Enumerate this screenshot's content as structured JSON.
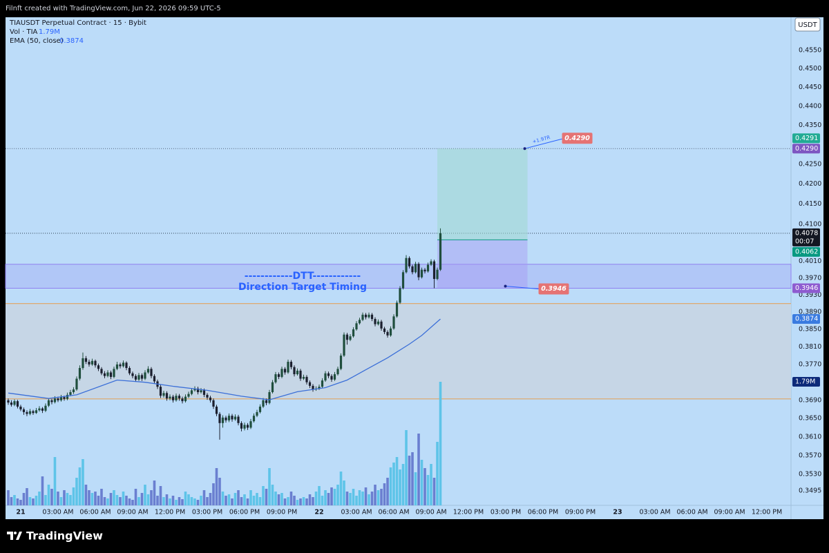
{
  "header": "Filnft created with TradingView.com, Jun 22, 2026 09:59 UTC-5",
  "footer": "TradingView",
  "chart_data": {
    "type": "candlestick",
    "title": "TIAUSDT Perpetual Contract · 15 · Bybit",
    "currency": "USDT",
    "volume_legend": {
      "label": "Vol · TIA",
      "value": 1.79,
      "value_label": "1.79M"
    },
    "ema_legend": {
      "label": "EMA (50, close)",
      "value": 0.3874
    },
    "log_scale": true,
    "grid": false,
    "up_color": "#1f4e3d",
    "down_color": "#1b1f2e",
    "volume_up_color": "#5ec4e8",
    "volume_down_color": "#6a7fd0",
    "ema_color": "#3b6fd8",
    "xlim": [
      -1.22,
      61.94
    ],
    "xticks": [
      {
        "value": 0,
        "label": "21"
      },
      {
        "value": 3,
        "label": "03:00 AM"
      },
      {
        "value": 6,
        "label": "06:00 AM"
      },
      {
        "value": 9,
        "label": "09:00 AM"
      },
      {
        "value": 12,
        "label": "12:00 PM"
      },
      {
        "value": 15,
        "label": "03:00 PM"
      },
      {
        "value": 18,
        "label": "06:00 PM"
      },
      {
        "value": 21,
        "label": "09:00 PM"
      },
      {
        "value": 24,
        "label": "22"
      },
      {
        "value": 27,
        "label": "03:00 AM"
      },
      {
        "value": 30,
        "label": "06:00 AM"
      },
      {
        "value": 33,
        "label": "09:00 AM"
      },
      {
        "value": 36,
        "label": "12:00 PM"
      },
      {
        "value": 39,
        "label": "03:00 PM"
      },
      {
        "value": 42,
        "label": "06:00 PM"
      },
      {
        "value": 45,
        "label": "09:00 PM"
      },
      {
        "value": 48,
        "label": "23"
      },
      {
        "value": 51,
        "label": "03:00 AM"
      },
      {
        "value": 54,
        "label": "06:00 AM"
      },
      {
        "value": 57,
        "label": "09:00 AM"
      },
      {
        "value": 60,
        "label": "12:00 PM"
      }
    ],
    "ylim": [
      0.3465,
      0.4641
    ],
    "yticks": [
      {
        "value": 0.455,
        "label": "0.4550"
      },
      {
        "value": 0.45,
        "label": "0.4500"
      },
      {
        "value": 0.445,
        "label": "0.4450"
      },
      {
        "value": 0.44,
        "label": "0.4400"
      },
      {
        "value": 0.435,
        "label": "0.4350"
      },
      {
        "value": 0.425,
        "label": "0.4250"
      },
      {
        "value": 0.42,
        "label": "0.4200"
      },
      {
        "value": 0.415,
        "label": "0.4150"
      },
      {
        "value": 0.41,
        "label": "0.4100"
      },
      {
        "value": 0.401,
        "label": "0.4010"
      },
      {
        "value": 0.397,
        "label": "0.3970"
      },
      {
        "value": 0.393,
        "label": "0.3930"
      },
      {
        "value": 0.389,
        "label": "0.3890"
      },
      {
        "value": 0.385,
        "label": "0.3850"
      },
      {
        "value": 0.381,
        "label": "0.3810"
      },
      {
        "value": 0.377,
        "label": "0.3770"
      },
      {
        "value": 0.369,
        "label": "0.3690"
      },
      {
        "value": 0.365,
        "label": "0.3650"
      },
      {
        "value": 0.361,
        "label": "0.3610"
      },
      {
        "value": 0.357,
        "label": "0.3570"
      },
      {
        "value": 0.353,
        "label": "0.3530"
      },
      {
        "value": 0.3495,
        "label": "0.3495"
      }
    ],
    "vlim": [
      0,
      7.07
    ],
    "x": [
      -1,
      -0.75,
      -0.5,
      -0.25,
      0,
      0.25,
      0.5,
      0.75,
      1,
      1.25,
      1.5,
      1.75,
      2,
      2.25,
      2.5,
      2.75,
      3,
      3.25,
      3.5,
      3.75,
      4,
      4.25,
      4.5,
      4.75,
      5,
      5.25,
      5.5,
      5.75,
      6,
      6.25,
      6.5,
      6.75,
      7,
      7.25,
      7.5,
      7.75,
      8,
      8.25,
      8.5,
      8.75,
      9,
      9.25,
      9.5,
      9.75,
      10,
      10.25,
      10.5,
      10.75,
      11,
      11.25,
      11.5,
      11.75,
      12,
      12.25,
      12.5,
      12.75,
      13,
      13.25,
      13.5,
      13.75,
      14,
      14.25,
      14.5,
      14.75,
      15,
      15.25,
      15.5,
      15.75,
      16,
      16.25,
      16.5,
      16.75,
      17,
      17.25,
      17.5,
      17.75,
      18,
      18.25,
      18.5,
      18.75,
      19,
      19.25,
      19.5,
      19.75,
      20,
      20.25,
      20.5,
      20.75,
      21,
      21.25,
      21.5,
      21.75,
      22,
      22.25,
      22.5,
      22.75,
      23,
      23.25,
      23.5,
      23.75,
      24,
      24.25,
      24.5,
      24.75,
      25,
      25.25,
      25.5,
      25.75,
      26,
      26.25,
      26.5,
      26.75,
      27,
      27.25,
      27.5,
      27.75,
      28,
      28.25,
      28.5,
      28.75,
      29,
      29.25,
      29.5,
      29.75,
      30,
      30.25,
      30.5,
      30.75,
      31,
      31.25,
      31.5,
      31.75,
      32,
      32.25,
      32.5,
      32.75,
      33,
      33.25,
      33.5,
      33.75
    ],
    "candles": [
      [
        0.369,
        0.3694,
        0.368,
        0.3685
      ],
      [
        0.3685,
        0.369,
        0.3676,
        0.368
      ],
      [
        0.368,
        0.3692,
        0.3677,
        0.3688
      ],
      [
        0.3688,
        0.3691,
        0.3672,
        0.3676
      ],
      [
        0.3676,
        0.368,
        0.3666,
        0.367
      ],
      [
        0.367,
        0.3674,
        0.3658,
        0.3664
      ],
      [
        0.3664,
        0.3668,
        0.3655,
        0.366
      ],
      [
        0.366,
        0.3671,
        0.3657,
        0.3666
      ],
      [
        0.3666,
        0.3669,
        0.3658,
        0.3662
      ],
      [
        0.3662,
        0.3673,
        0.366,
        0.3668
      ],
      [
        0.3668,
        0.3677,
        0.3665,
        0.3672
      ],
      [
        0.3672,
        0.3675,
        0.3662,
        0.3667
      ],
      [
        0.3667,
        0.3683,
        0.3664,
        0.3678
      ],
      [
        0.3678,
        0.3695,
        0.3675,
        0.369
      ],
      [
        0.369,
        0.3693,
        0.3681,
        0.3686
      ],
      [
        0.3686,
        0.3699,
        0.3683,
        0.3694
      ],
      [
        0.3694,
        0.3698,
        0.3686,
        0.369
      ],
      [
        0.369,
        0.3702,
        0.3687,
        0.3697
      ],
      [
        0.3697,
        0.37,
        0.3689,
        0.3693
      ],
      [
        0.3693,
        0.3707,
        0.369,
        0.3702
      ],
      [
        0.3702,
        0.3713,
        0.3699,
        0.3708
      ],
      [
        0.3708,
        0.3719,
        0.3704,
        0.3714
      ],
      [
        0.3714,
        0.3743,
        0.3711,
        0.3738
      ],
      [
        0.3738,
        0.3768,
        0.3734,
        0.3762
      ],
      [
        0.3762,
        0.3797,
        0.3758,
        0.3784
      ],
      [
        0.3784,
        0.3789,
        0.3771,
        0.3776
      ],
      [
        0.3776,
        0.3781,
        0.3765,
        0.377
      ],
      [
        0.377,
        0.3783,
        0.3767,
        0.3778
      ],
      [
        0.3778,
        0.3781,
        0.3763,
        0.3768
      ],
      [
        0.3768,
        0.3772,
        0.3755,
        0.376
      ],
      [
        0.376,
        0.3764,
        0.3746,
        0.375
      ],
      [
        0.375,
        0.3755,
        0.3739,
        0.3744
      ],
      [
        0.3744,
        0.3757,
        0.3741,
        0.3752
      ],
      [
        0.3752,
        0.3756,
        0.3737,
        0.3742
      ],
      [
        0.3742,
        0.3765,
        0.3739,
        0.376
      ],
      [
        0.376,
        0.3776,
        0.3757,
        0.377
      ],
      [
        0.377,
        0.3774,
        0.3761,
        0.3766
      ],
      [
        0.3766,
        0.3779,
        0.3763,
        0.3774
      ],
      [
        0.3774,
        0.3777,
        0.3757,
        0.3762
      ],
      [
        0.3762,
        0.3766,
        0.3746,
        0.375
      ],
      [
        0.375,
        0.3754,
        0.3739,
        0.3744
      ],
      [
        0.3744,
        0.3748,
        0.3731,
        0.3736
      ],
      [
        0.3736,
        0.3751,
        0.3733,
        0.3746
      ],
      [
        0.3746,
        0.375,
        0.3733,
        0.3738
      ],
      [
        0.3738,
        0.3757,
        0.3735,
        0.3752
      ],
      [
        0.3752,
        0.3766,
        0.3749,
        0.376
      ],
      [
        0.376,
        0.3764,
        0.3739,
        0.3744
      ],
      [
        0.3744,
        0.3748,
        0.3727,
        0.3732
      ],
      [
        0.3732,
        0.3736,
        0.3715,
        0.372
      ],
      [
        0.372,
        0.3724,
        0.3695,
        0.37
      ],
      [
        0.37,
        0.3711,
        0.3696,
        0.3706
      ],
      [
        0.3706,
        0.371,
        0.3689,
        0.3694
      ],
      [
        0.3694,
        0.3703,
        0.369,
        0.3698
      ],
      [
        0.3698,
        0.3702,
        0.3685,
        0.369
      ],
      [
        0.369,
        0.3705,
        0.3687,
        0.37
      ],
      [
        0.37,
        0.3704,
        0.3689,
        0.3694
      ],
      [
        0.3694,
        0.3698,
        0.3683,
        0.3688
      ],
      [
        0.3688,
        0.3703,
        0.3685,
        0.3698
      ],
      [
        0.3698,
        0.3709,
        0.3695,
        0.3704
      ],
      [
        0.3704,
        0.3717,
        0.3701,
        0.3712
      ],
      [
        0.3712,
        0.3721,
        0.3709,
        0.3716
      ],
      [
        0.3716,
        0.372,
        0.3703,
        0.3708
      ],
      [
        0.3708,
        0.3717,
        0.3705,
        0.3712
      ],
      [
        0.3712,
        0.3716,
        0.3697,
        0.3702
      ],
      [
        0.3702,
        0.3706,
        0.3691,
        0.3696
      ],
      [
        0.3696,
        0.37,
        0.3685,
        0.369
      ],
      [
        0.369,
        0.3694,
        0.3671,
        0.3676
      ],
      [
        0.3676,
        0.368,
        0.3655,
        0.366
      ],
      [
        0.366,
        0.3664,
        0.3604,
        0.364
      ],
      [
        0.364,
        0.3657,
        0.363,
        0.3652
      ],
      [
        0.3652,
        0.3656,
        0.3641,
        0.3646
      ],
      [
        0.3646,
        0.3661,
        0.3642,
        0.3656
      ],
      [
        0.3656,
        0.366,
        0.3643,
        0.3648
      ],
      [
        0.3648,
        0.3659,
        0.3645,
        0.3654
      ],
      [
        0.3654,
        0.3658,
        0.3635,
        0.364
      ],
      [
        0.364,
        0.3644,
        0.3622,
        0.3628
      ],
      [
        0.3628,
        0.3641,
        0.3624,
        0.3636
      ],
      [
        0.3636,
        0.364,
        0.3625,
        0.363
      ],
      [
        0.363,
        0.3649,
        0.3627,
        0.3644
      ],
      [
        0.3644,
        0.3661,
        0.3641,
        0.3656
      ],
      [
        0.3656,
        0.3669,
        0.3653,
        0.3664
      ],
      [
        0.3664,
        0.3681,
        0.3661,
        0.3676
      ],
      [
        0.3676,
        0.3695,
        0.3673,
        0.369
      ],
      [
        0.369,
        0.3694,
        0.3679,
        0.3684
      ],
      [
        0.3684,
        0.3713,
        0.3681,
        0.3708
      ],
      [
        0.3708,
        0.3735,
        0.3705,
        0.373
      ],
      [
        0.373,
        0.3753,
        0.3727,
        0.3748
      ],
      [
        0.3748,
        0.3752,
        0.3737,
        0.3742
      ],
      [
        0.3742,
        0.3765,
        0.3739,
        0.376
      ],
      [
        0.376,
        0.3764,
        0.3747,
        0.3752
      ],
      [
        0.3752,
        0.3781,
        0.3749,
        0.3776
      ],
      [
        0.3776,
        0.378,
        0.3759,
        0.3764
      ],
      [
        0.3764,
        0.3768,
        0.3743,
        0.3748
      ],
      [
        0.3748,
        0.3761,
        0.3745,
        0.3756
      ],
      [
        0.3756,
        0.376,
        0.3733,
        0.3738
      ],
      [
        0.3738,
        0.3747,
        0.3735,
        0.3742
      ],
      [
        0.3742,
        0.3746,
        0.3725,
        0.373
      ],
      [
        0.373,
        0.3734,
        0.3717,
        0.3722
      ],
      [
        0.3722,
        0.3726,
        0.3709,
        0.3714
      ],
      [
        0.3714,
        0.3721,
        0.3711,
        0.3716
      ],
      [
        0.3716,
        0.3725,
        0.3713,
        0.372
      ],
      [
        0.372,
        0.3739,
        0.3717,
        0.3734
      ],
      [
        0.3734,
        0.3755,
        0.3731,
        0.375
      ],
      [
        0.375,
        0.3754,
        0.3739,
        0.3744
      ],
      [
        0.3744,
        0.3748,
        0.3731,
        0.3736
      ],
      [
        0.3736,
        0.3753,
        0.3733,
        0.3748
      ],
      [
        0.3748,
        0.3765,
        0.3745,
        0.376
      ],
      [
        0.376,
        0.3795,
        0.3757,
        0.379
      ],
      [
        0.379,
        0.3843,
        0.3787,
        0.3838
      ],
      [
        0.3838,
        0.3842,
        0.3815,
        0.3826
      ],
      [
        0.3826,
        0.3839,
        0.3823,
        0.3834
      ],
      [
        0.3834,
        0.3855,
        0.3831,
        0.385
      ],
      [
        0.385,
        0.3869,
        0.3847,
        0.3864
      ],
      [
        0.3864,
        0.3877,
        0.3861,
        0.3872
      ],
      [
        0.3872,
        0.3889,
        0.3869,
        0.3884
      ],
      [
        0.3884,
        0.3888,
        0.3873,
        0.3878
      ],
      [
        0.3878,
        0.3889,
        0.3875,
        0.3884
      ],
      [
        0.3884,
        0.3888,
        0.3869,
        0.3874
      ],
      [
        0.3874,
        0.3878,
        0.3857,
        0.3862
      ],
      [
        0.3862,
        0.3873,
        0.3859,
        0.3868
      ],
      [
        0.3868,
        0.3872,
        0.3847,
        0.3852
      ],
      [
        0.3852,
        0.3856,
        0.3839,
        0.3844
      ],
      [
        0.3844,
        0.3848,
        0.3831,
        0.3836
      ],
      [
        0.3836,
        0.3857,
        0.3833,
        0.3852
      ],
      [
        0.3852,
        0.3885,
        0.3849,
        0.388
      ],
      [
        0.388,
        0.3917,
        0.3877,
        0.3912
      ],
      [
        0.3912,
        0.3951,
        0.3909,
        0.3946
      ],
      [
        0.3946,
        0.3989,
        0.3943,
        0.3984
      ],
      [
        0.3984,
        0.4025,
        0.3981,
        0.4018
      ],
      [
        0.4018,
        0.4022,
        0.3993,
        0.3998
      ],
      [
        0.3998,
        0.4002,
        0.3979,
        0.3984
      ],
      [
        0.3984,
        0.4009,
        0.3981,
        0.4004
      ],
      [
        0.4004,
        0.4008,
        0.3965,
        0.3972
      ],
      [
        0.3972,
        0.3995,
        0.3969,
        0.399
      ],
      [
        0.399,
        0.3994,
        0.3981,
        0.3986
      ],
      [
        0.3986,
        0.4007,
        0.3983,
        0.4002
      ],
      [
        0.4002,
        0.4015,
        0.3999,
        0.401
      ],
      [
        0.401,
        0.4014,
        0.3946,
        0.3968
      ],
      [
        0.3968,
        0.3995,
        0.3965,
        0.399
      ],
      [
        0.399,
        0.409,
        0.3987,
        0.4078
      ]
    ],
    "volume": [
      0.22,
      0.12,
      0.15,
      0.1,
      0.08,
      0.18,
      0.25,
      0.12,
      0.1,
      0.14,
      0.2,
      0.42,
      0.15,
      0.3,
      0.24,
      0.7,
      0.2,
      0.12,
      0.22,
      0.18,
      0.15,
      0.26,
      0.4,
      0.55,
      0.67,
      0.3,
      0.22,
      0.18,
      0.2,
      0.14,
      0.24,
      0.12,
      0.1,
      0.18,
      0.22,
      0.15,
      0.12,
      0.2,
      0.14,
      0.1,
      0.08,
      0.24,
      0.12,
      0.18,
      0.3,
      0.16,
      0.22,
      0.36,
      0.14,
      0.28,
      0.12,
      0.16,
      0.1,
      0.14,
      0.08,
      0.12,
      0.09,
      0.2,
      0.16,
      0.12,
      0.1,
      0.08,
      0.14,
      0.22,
      0.12,
      0.18,
      0.32,
      0.54,
      0.4,
      0.2,
      0.14,
      0.16,
      0.1,
      0.18,
      0.22,
      0.12,
      0.16,
      0.1,
      0.22,
      0.14,
      0.18,
      0.12,
      0.28,
      0.24,
      0.54,
      0.3,
      0.2,
      0.16,
      0.18,
      0.1,
      0.12,
      0.2,
      0.14,
      0.08,
      0.1,
      0.12,
      0.1,
      0.16,
      0.12,
      0.2,
      0.28,
      0.14,
      0.22,
      0.18,
      0.26,
      0.24,
      0.3,
      0.49,
      0.36,
      0.2,
      0.18,
      0.24,
      0.14,
      0.22,
      0.2,
      0.26,
      0.16,
      0.2,
      0.3,
      0.22,
      0.24,
      0.32,
      0.4,
      0.55,
      0.62,
      0.7,
      0.52,
      0.6,
      1.09,
      0.72,
      0.77,
      0.48,
      1.04,
      0.66,
      0.54,
      0.44,
      0.6,
      0.4,
      0.92,
      1.79
    ],
    "ema": {
      "x": [
        -1,
        2.25,
        4.5,
        7.75,
        10,
        12.25,
        15,
        17.75,
        20,
        22.25,
        24.5,
        26.25,
        27.75,
        29.5,
        31.25,
        32.25,
        33.75
      ],
      "values": [
        0.3706,
        0.3694,
        0.3702,
        0.3735,
        0.373,
        0.3721,
        0.3712,
        0.3699,
        0.3691,
        0.3709,
        0.3718,
        0.3735,
        0.3758,
        0.3785,
        0.3816,
        0.3836,
        0.3874
      ]
    },
    "last_countdown": "00:07",
    "last_color": "#131722",
    "levels": [
      {
        "value": 0.391,
        "color": "#e2a35e"
      },
      {
        "value": 0.3693,
        "color": "#e2a35e"
      }
    ],
    "level_fill": "#c6d6e6",
    "zone": {
      "from": 0.3946,
      "to": 0.4003,
      "color": "#8f7ff0"
    },
    "annotations": [
      "------------DTT------------",
      "Direction Target Timing"
    ],
    "annotation_color": "#2962ff",
    "position": {
      "x": [
        33.5,
        40.75
      ],
      "entry": 0.4062,
      "target": {
        "value": 0.429,
        "label": "0.4290"
      },
      "stop": {
        "value": 0.3946,
        "label": "0.3946"
      },
      "ratio_label": "+1.97R",
      "label_color": "#e57373"
    },
    "price_labels": [
      {
        "value": 0.429,
        "label": "0.4290",
        "color": "#7e57c2"
      },
      {
        "value": 0.4291,
        "color": "#22ab94"
      },
      {
        "value": 0.4062,
        "color": "#089981"
      },
      {
        "value": 0.3946,
        "label": "0.3946",
        "color": "#8e5bd0"
      }
    ],
    "ema_label_color": "#3a7be0",
    "volume_label_color": "#0d2a7a"
  }
}
